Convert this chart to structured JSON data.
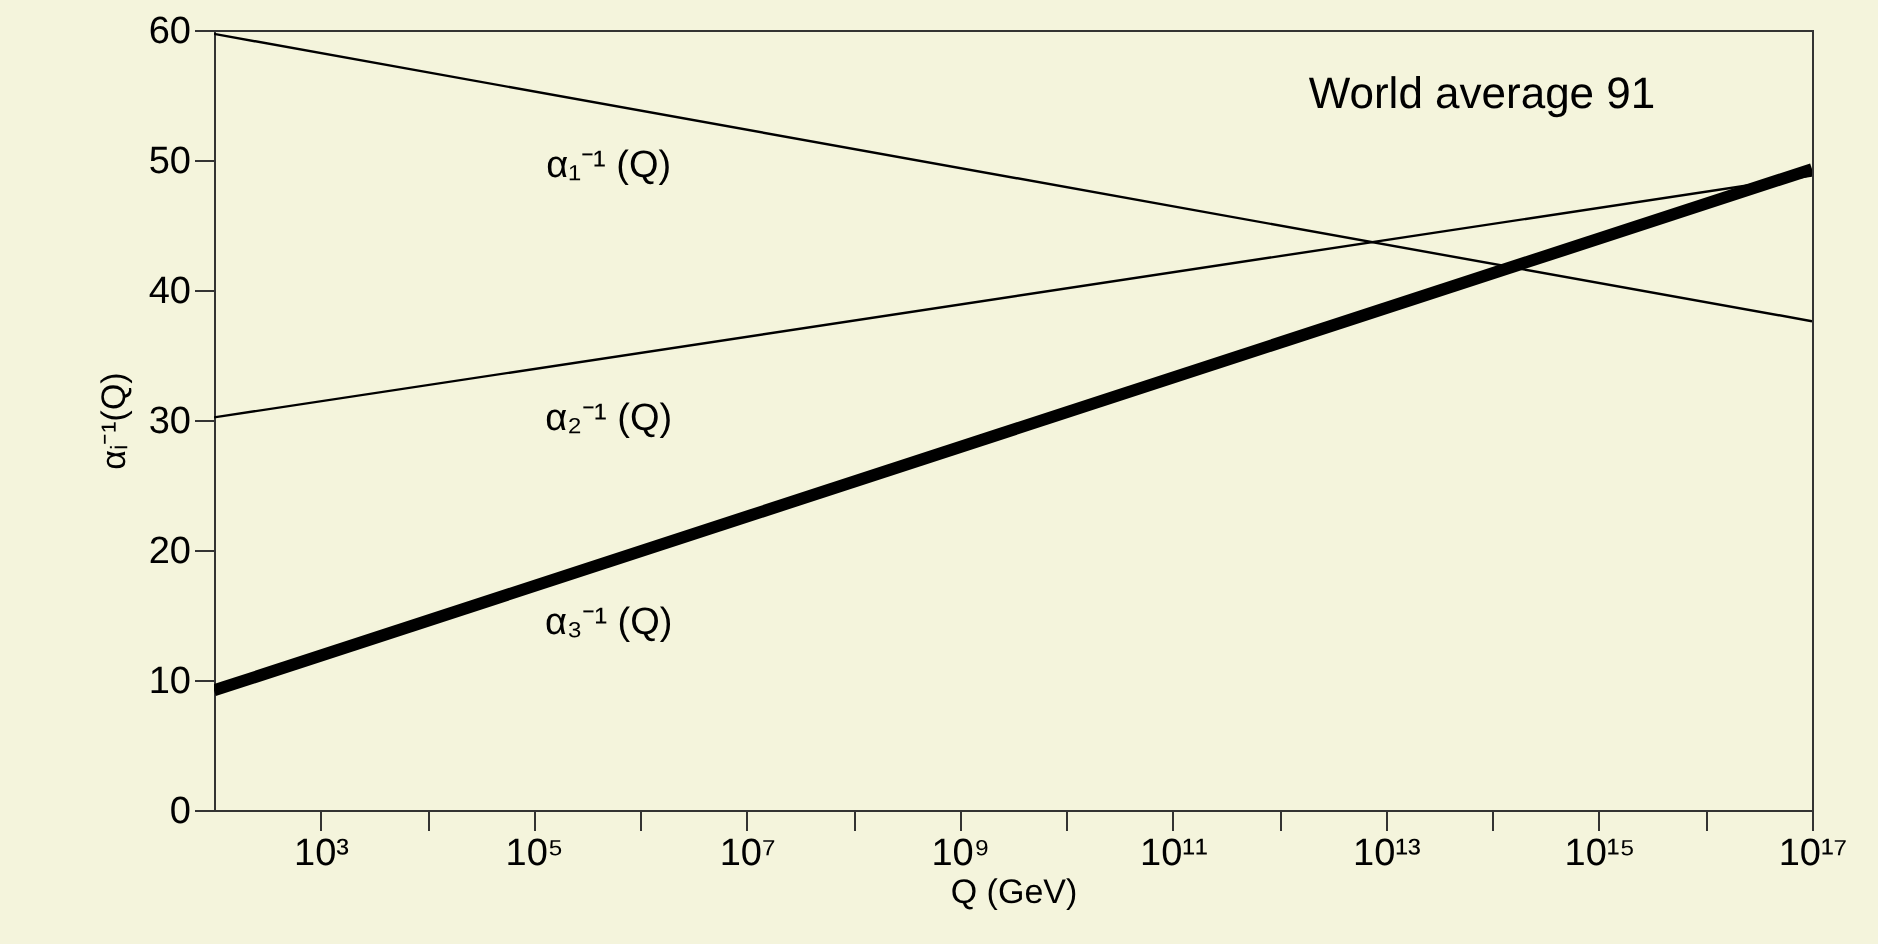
{
  "chart_data": {
    "type": "line",
    "xlabel": "Q (GeV)",
    "ylabel": "αᵢ⁻¹(Q)",
    "log": "x",
    "x": [
      100,
      1e+17
    ],
    "series": [
      {
        "name": "α₁⁻¹ (Q)",
        "color": "#000000",
        "values": [
          59.7,
          37.6
        ]
      },
      {
        "name": "α₂⁻¹ (Q)",
        "color": "#000000",
        "values": [
          30.2,
          48.8
        ]
      },
      {
        "name": "α₃⁻¹ (Q)",
        "color": "#000000",
        "values": [
          9.2,
          49.3
        ]
      }
    ],
    "xlim": [
      100,
      1e+17
    ],
    "xticks": [
      {
        "value": 1000,
        "label": "10³"
      },
      {
        "value": 10000,
        "label": null
      },
      {
        "value": 100000,
        "label": "10⁵"
      },
      {
        "value": 1000000,
        "label": null
      },
      {
        "value": 10000000,
        "label": "10⁷"
      },
      {
        "value": 100000000,
        "label": null
      },
      {
        "value": 1000000000,
        "label": "10⁹"
      },
      {
        "value": 10000000000,
        "label": null
      },
      {
        "value": 100000000000,
        "label": "10¹¹"
      },
      {
        "value": 1000000000000,
        "label": null
      },
      {
        "value": 10000000000000,
        "label": "10¹³"
      },
      {
        "value": 100000000000000,
        "label": null
      },
      {
        "value": 1000000000000000,
        "label": "10¹⁵"
      },
      {
        "value": 10000000000000000,
        "label": null
      },
      {
        "value": 100000000000000000,
        "label": "10¹⁷"
      }
    ],
    "ylim": [
      0,
      60
    ],
    "yticks": [
      0,
      10,
      20,
      30,
      40,
      50,
      60
    ],
    "grid": false,
    "marker": "none",
    "line_style": "solid",
    "annotations": [
      "World average 91"
    ]
  }
}
